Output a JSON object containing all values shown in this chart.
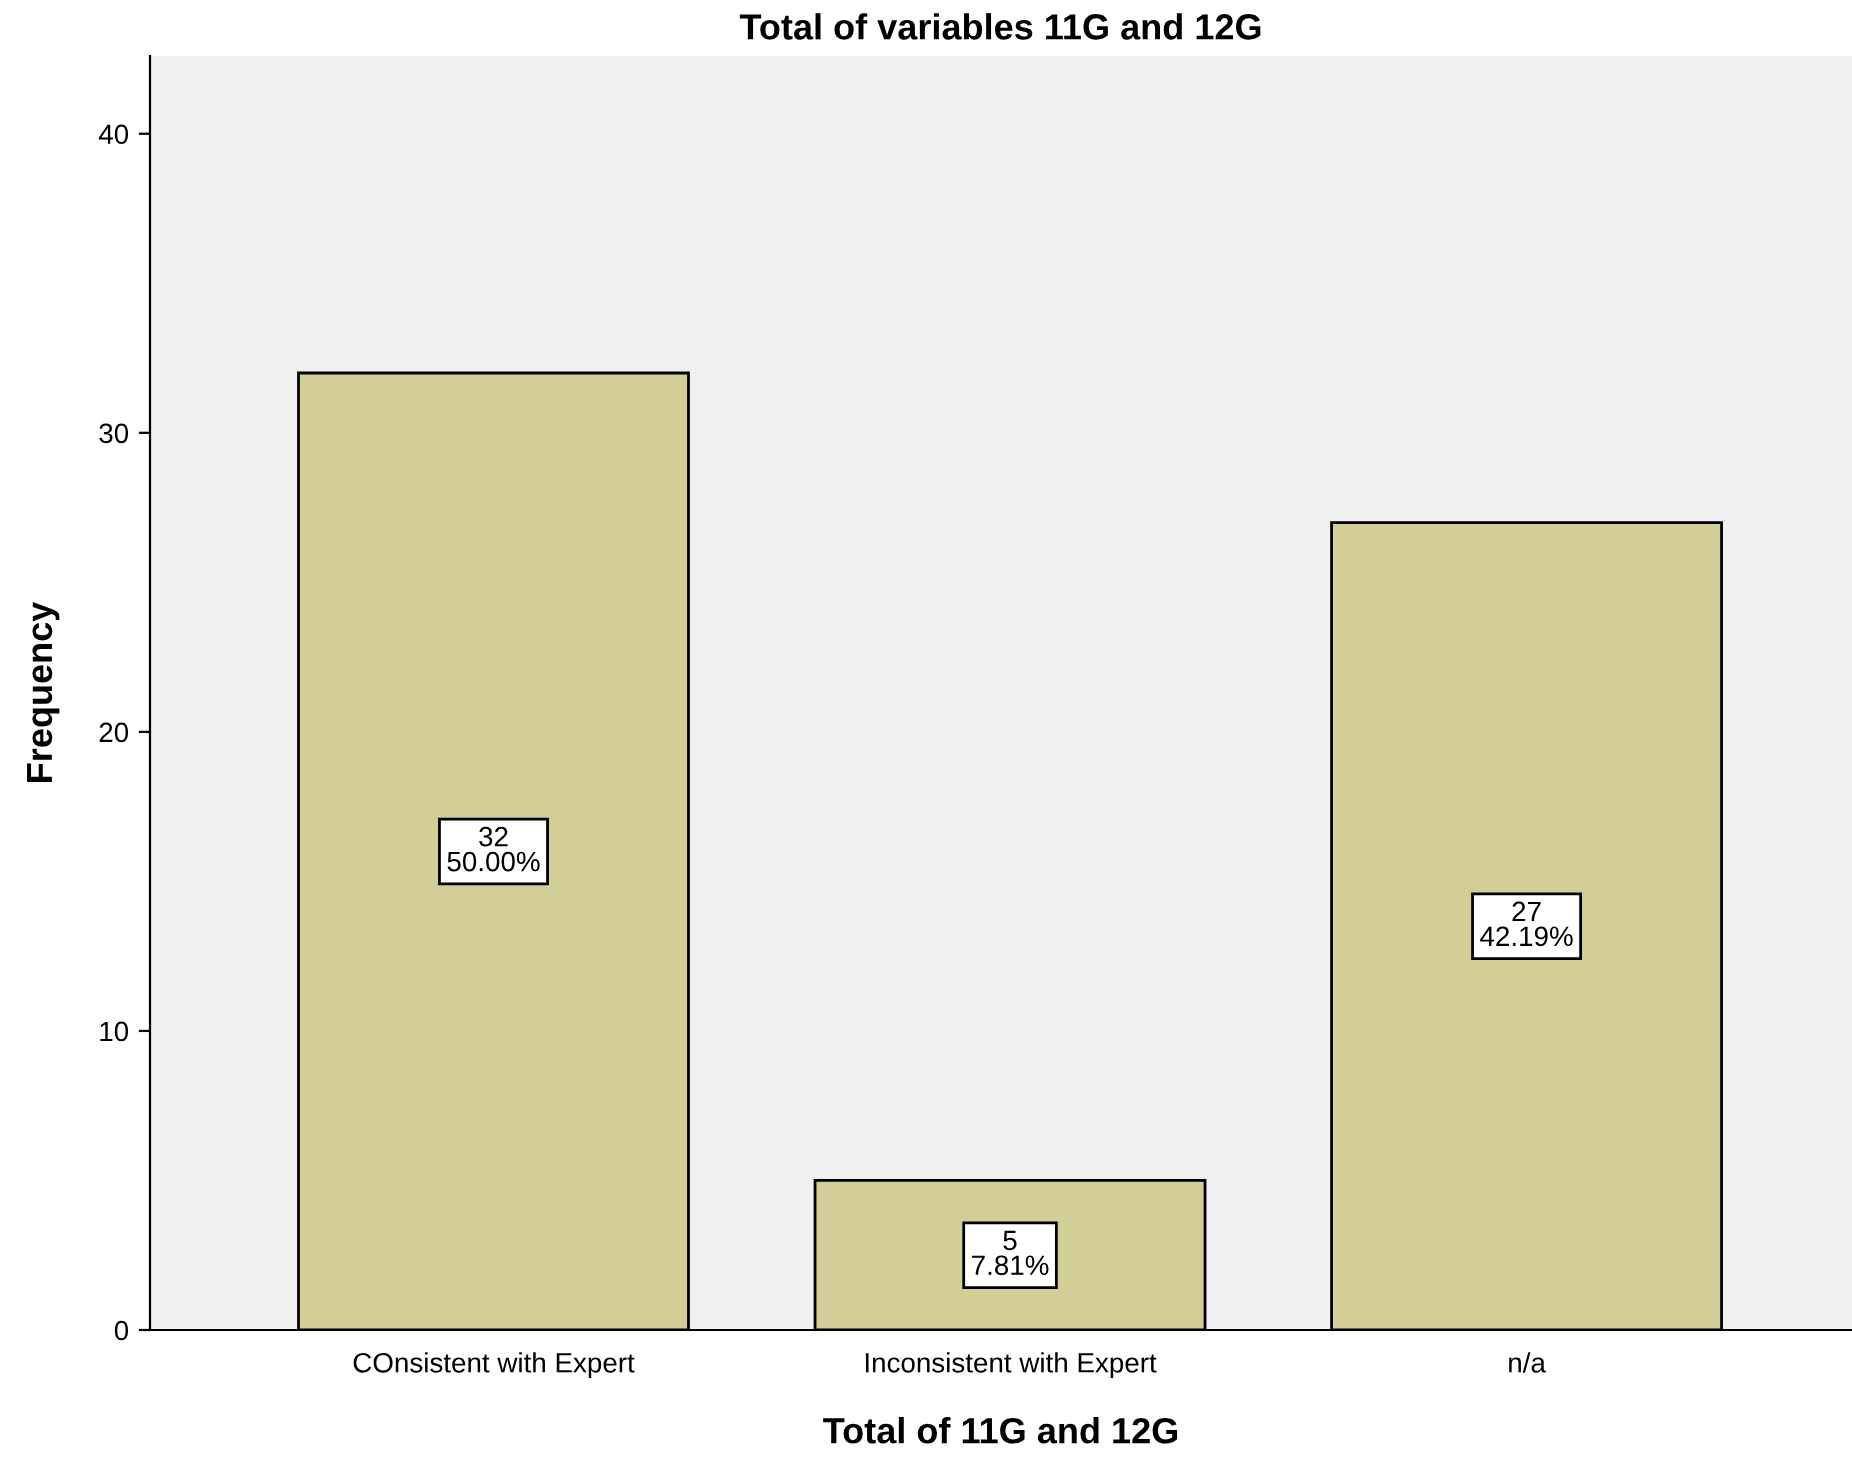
{
  "chart_data": {
    "type": "bar",
    "title": "Total of variables 11G and 12G",
    "xlabel": "Total of 11G and 12G",
    "ylabel": "Frequency",
    "categories": [
      "COnsistent with Expert",
      "Inconsistent with Expert",
      "n/a"
    ],
    "values": [
      32,
      5,
      27
    ],
    "value_labels": [
      "32\n50.00%",
      "5\n7.81%",
      "27\n42.19%"
    ],
    "color": "#d3ce97",
    "ylim": [
      0,
      42.6
    ],
    "yticks": [
      0,
      10,
      20,
      30,
      40
    ],
    "grid": false,
    "legend": false
  }
}
